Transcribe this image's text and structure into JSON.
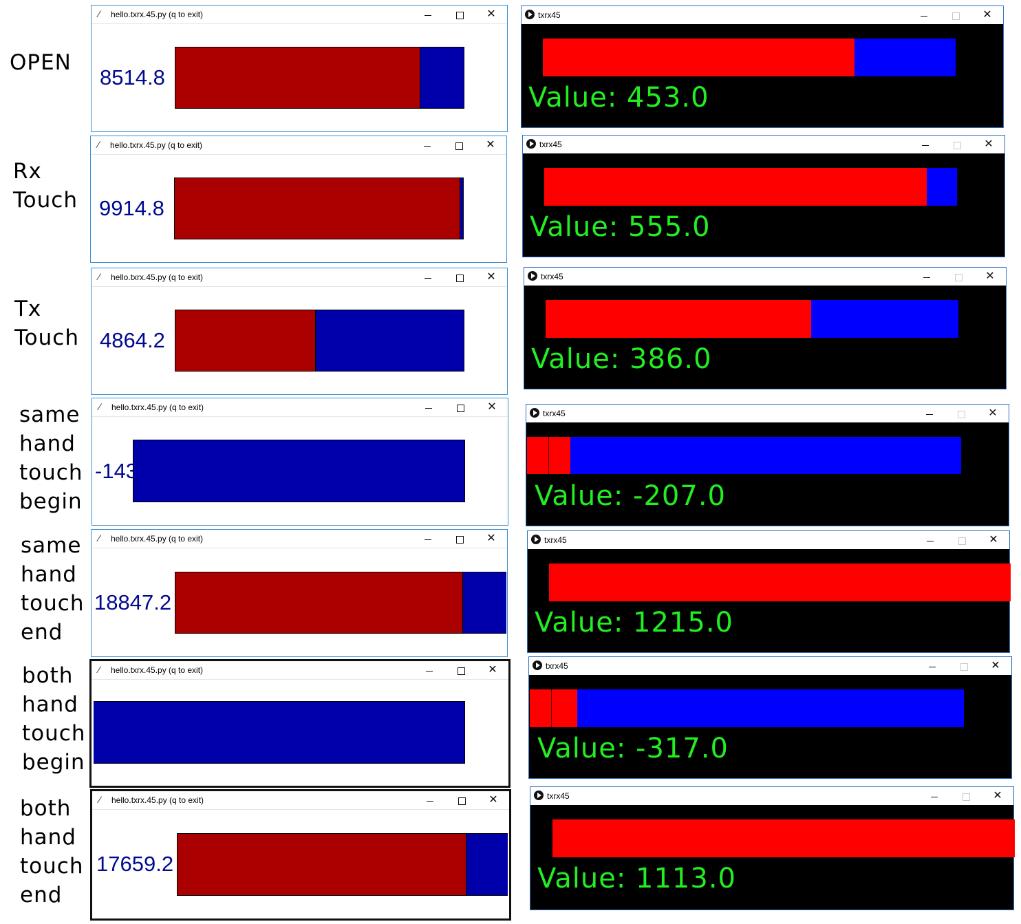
{
  "labels": [
    "OPEN",
    "Rx\nTouch",
    "Tx\nTouch",
    "same\nhand\ntouch\nbegin",
    "same\nhand\ntouch\nend",
    "both\nhand\ntouch\nbegin",
    "both\nhand\ntouch\nend"
  ],
  "tk_title": "hello.txrx.45.py (q to exit)",
  "pg_title": "txrx45",
  "window_buttons": {
    "minimize": "—",
    "close": "✕"
  },
  "colors": {
    "tk_red": "#aa0000",
    "tk_blue": "#0000aa",
    "tk_text": "#000a8c",
    "pg_red": "#ff0000",
    "pg_blue": "#0000ff",
    "pg_text": "#22ee22",
    "pg_bg": "#000000"
  },
  "rows": [
    {
      "tk_value": "8514.8",
      "tk_red_fraction": 0.849,
      "pg_value": "Value: 453.0",
      "pg_red_fraction": 0.755
    },
    {
      "tk_value": "9914.8",
      "tk_red_fraction": 0.99,
      "pg_value": "Value: 555.0",
      "pg_red_fraction": 0.926
    },
    {
      "tk_value": "4864.2",
      "tk_red_fraction": 0.486,
      "pg_value": "Value: 386.0",
      "pg_red_fraction": 0.644
    },
    {
      "tk_value": "-143",
      "tk_red_fraction": 0,
      "pg_value": "Value: -207.0",
      "pg_red_fraction": 0.1,
      "pg_divided": true
    },
    {
      "tk_value": "18847.2",
      "tk_red_fraction": 0.87,
      "pg_value": "Value: 1215.0",
      "pg_red_fraction": 1
    },
    {
      "tk_value": "",
      "tk_red_fraction": 0,
      "pg_value": "Value: -317.0",
      "pg_red_fraction": 0.11,
      "pg_divided": true
    },
    {
      "tk_value": "17659.2",
      "tk_red_fraction": 0.874,
      "pg_value": "Value: 1113.0",
      "pg_red_fraction": 1
    }
  ]
}
